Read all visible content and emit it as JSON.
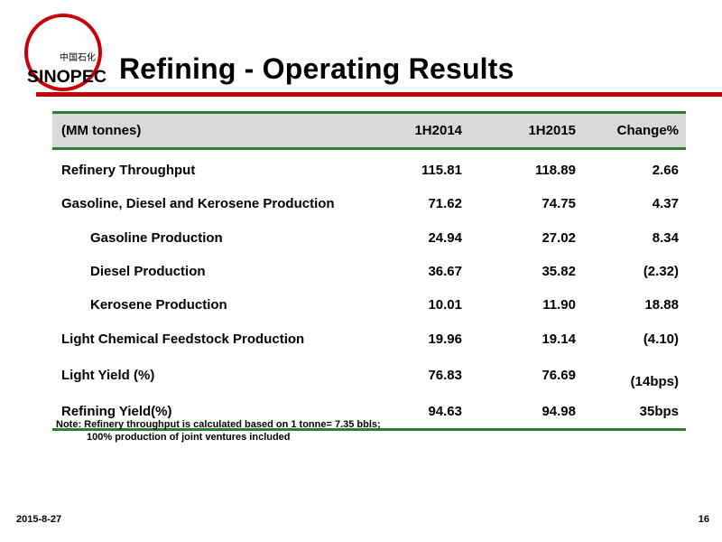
{
  "header": {
    "title": "Refining - Operating Results",
    "logo": {
      "brand_text": "SINOPEC",
      "chinese_text": "中国石化",
      "color": "#c8000a"
    }
  },
  "table": {
    "columns": [
      "(MM tonnes)",
      "1H2014",
      "1H2015",
      "Change%"
    ],
    "rows": [
      {
        "label": "Refinery Throughput",
        "indent": false,
        "v2014": "115.81",
        "v2015": "118.89",
        "change": "2.66"
      },
      {
        "label": "Gasoline, Diesel and Kerosene Production",
        "indent": false,
        "v2014": "71.62",
        "v2015": "74.75",
        "change": "4.37"
      },
      {
        "label": "Gasoline Production",
        "indent": true,
        "v2014": "24.94",
        "v2015": "27.02",
        "change": "8.34"
      },
      {
        "label": "Diesel Production",
        "indent": true,
        "v2014": "36.67",
        "v2015": "35.82",
        "change": "(2.32)"
      },
      {
        "label": "Kerosene Production",
        "indent": true,
        "v2014": "10.01",
        "v2015": "11.90",
        "change": "18.88"
      },
      {
        "label": "Light Chemical Feedstock Production",
        "indent": false,
        "v2014": "19.96",
        "v2015": "19.14",
        "change": "(4.10)"
      },
      {
        "label": "Light Yield (%)",
        "indent": false,
        "v2014": "76.83",
        "v2015": "76.69",
        "change": "(14bps)"
      },
      {
        "label": "Refining Yield(%)",
        "indent": false,
        "v2014": "94.63",
        "v2015": "94.98",
        "change": "35bps"
      }
    ]
  },
  "note": {
    "line1": "Note: Refinery throughput is calculated based on 1 tonne= 7.35 bbls;",
    "line2": "100% production of joint ventures included"
  },
  "footer": {
    "date": "2015-8-27",
    "page": "16"
  },
  "colors": {
    "accent_red": "#c8000a",
    "table_rule_green": "#2e7d3a",
    "header_fill": "#d9d9d9"
  }
}
